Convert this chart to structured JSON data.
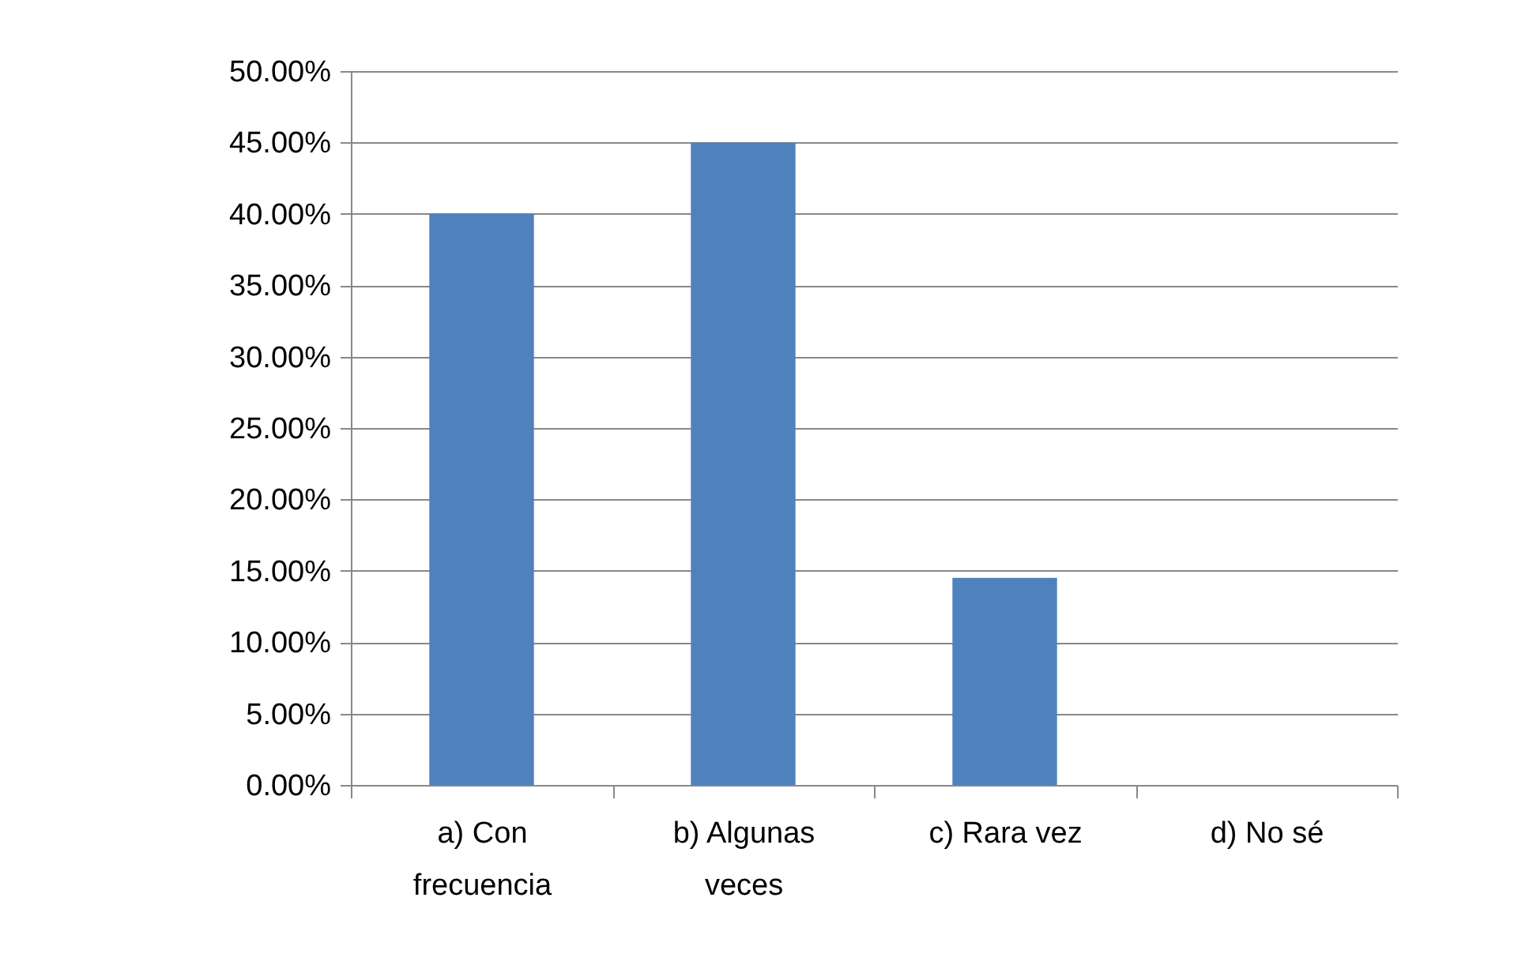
{
  "chart_data": {
    "type": "bar",
    "categories": [
      "a) Con frecuencia",
      "b) Algunas veces",
      "c) Rara vez",
      "d) No sé"
    ],
    "values": [
      40,
      45,
      14.5,
      0
    ],
    "color": "#4f81bd",
    "ylim": [
      0,
      50
    ],
    "yticks": [
      {
        "value": 0,
        "label": "0.00%"
      },
      {
        "value": 5,
        "label": "5.00%"
      },
      {
        "value": 10,
        "label": "10.00%"
      },
      {
        "value": 15,
        "label": "15.00%"
      },
      {
        "value": 20,
        "label": "20.00%"
      },
      {
        "value": 25,
        "label": "25.00%"
      },
      {
        "value": 30,
        "label": "30.00%"
      },
      {
        "value": 35,
        "label": "35.00%"
      },
      {
        "value": 40,
        "label": "40.00%"
      },
      {
        "value": 45,
        "label": "45.00%"
      },
      {
        "value": 50,
        "label": "50.00%"
      }
    ],
    "grid": "y"
  }
}
